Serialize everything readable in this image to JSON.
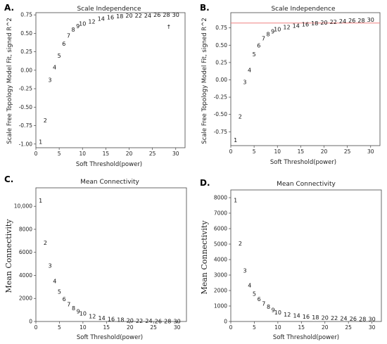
{
  "figure": {
    "panels": [
      {
        "letter": "A.",
        "chart_data": {
          "type": "scatter",
          "title": "Scale Independence",
          "xlabel": "Soft Threshold(power)",
          "ylabel": "Scale Free Topology Model Fit, signed R^2",
          "xlim": [
            0,
            32
          ],
          "ylim": [
            -1.05,
            0.78
          ],
          "xticks": [
            "0",
            "5",
            "10",
            "15",
            "20",
            "25",
            "30"
          ],
          "yticks": [
            "-1.00",
            "-0.75",
            "-0.50",
            "-0.25",
            "0.00",
            "0.25",
            "0.50",
            "0.75"
          ],
          "xtick_values": [
            0,
            5,
            10,
            15,
            20,
            25,
            30
          ],
          "ytick_values": [
            -1.0,
            -0.75,
            -0.5,
            -0.25,
            0.0,
            0.25,
            0.5,
            0.75
          ],
          "x": [
            1,
            2,
            3,
            4,
            5,
            6,
            7,
            8,
            9,
            10,
            12,
            14,
            16,
            18,
            20,
            22,
            24,
            26,
            28,
            30
          ],
          "y": [
            -0.97,
            -0.68,
            -0.13,
            0.04,
            0.2,
            0.36,
            0.47,
            0.55,
            0.6,
            0.63,
            0.66,
            0.7,
            0.72,
            0.73,
            0.74,
            0.74,
            0.74,
            0.75,
            0.75,
            0.75
          ],
          "labels": [
            "1",
            "2",
            "3",
            "4",
            "5",
            "6",
            "7",
            "8",
            "9",
            "10",
            "12",
            "14",
            "16",
            "18",
            "20",
            "22",
            "24",
            "26",
            "28",
            "30"
          ],
          "annotation": {
            "text": "↑",
            "x": 28.5,
            "y": 0.6,
            "color": "#e06666"
          },
          "grid": false
        }
      },
      {
        "letter": "B.",
        "chart_data": {
          "type": "scatter",
          "title": "Scale Independence",
          "xlabel": "Soft Threshold(power)",
          "ylabel": "Scale Free Topology Model Fit, signed R^2",
          "xlim": [
            0,
            32
          ],
          "ylim": [
            -0.95,
            0.97
          ],
          "xticks": [
            "0",
            "5",
            "10",
            "15",
            "20",
            "25",
            "30"
          ],
          "yticks": [
            "-0.75",
            "-0.50",
            "-0.25",
            "0.00",
            "0.25",
            "0.50",
            "0.75"
          ],
          "xtick_values": [
            0,
            5,
            10,
            15,
            20,
            25,
            30
          ],
          "ytick_values": [
            -0.75,
            -0.5,
            -0.25,
            0.0,
            0.25,
            0.5,
            0.75
          ],
          "x": [
            1,
            2,
            3,
            4,
            5,
            6,
            7,
            8,
            9,
            10,
            12,
            14,
            16,
            18,
            20,
            22,
            24,
            26,
            28,
            30
          ],
          "y": [
            -0.87,
            -0.53,
            -0.03,
            0.14,
            0.37,
            0.5,
            0.6,
            0.66,
            0.7,
            0.73,
            0.76,
            0.78,
            0.8,
            0.82,
            0.83,
            0.84,
            0.85,
            0.86,
            0.86,
            0.87
          ],
          "labels": [
            "1",
            "2",
            "3",
            "4",
            "5",
            "6",
            "7",
            "8",
            "9",
            "10",
            "12",
            "14",
            "16",
            "18",
            "20",
            "22",
            "24",
            "26",
            "28",
            "30"
          ],
          "hline": {
            "y": 0.82,
            "color": "#f08080"
          },
          "grid": false
        }
      },
      {
        "letter": "C.",
        "chart_data": {
          "type": "scatter",
          "title": "Mean Connectivity",
          "xlabel": "Soft Threshold(power)",
          "ylabel": "Mean Connectivity",
          "ylabel_font": "serif",
          "xlim": [
            0,
            32
          ],
          "ylim": [
            0,
            11600
          ],
          "xticks": [
            "0",
            "5",
            "10",
            "15",
            "20",
            "25",
            "30"
          ],
          "yticks": [
            "0",
            "2000",
            "4000",
            "6000",
            "8000",
            "10,000"
          ],
          "xtick_values": [
            0,
            5,
            10,
            15,
            20,
            25,
            30
          ],
          "ytick_values": [
            0,
            2000,
            4000,
            6000,
            8000,
            10000
          ],
          "x": [
            1,
            2,
            3,
            4,
            5,
            6,
            7,
            8,
            9,
            10,
            12,
            14,
            16,
            18,
            20,
            22,
            24,
            26,
            28,
            30
          ],
          "y": [
            10500,
            6850,
            4850,
            3500,
            2600,
            1950,
            1500,
            1150,
            900,
            700,
            450,
            300,
            200,
            150,
            100,
            70,
            50,
            40,
            30,
            20
          ],
          "labels": [
            "1",
            "2",
            "3",
            "4",
            "5",
            "6",
            "7",
            "8",
            "9",
            "10",
            "12",
            "14",
            "16",
            "18",
            "20",
            "22",
            "24",
            "26",
            "28",
            "30"
          ],
          "grid": false
        }
      },
      {
        "letter": "D.",
        "chart_data": {
          "type": "scatter",
          "title": "Mean Connectivity",
          "xlabel": "Soft Threshold(power)",
          "ylabel": "Mean Connectivity",
          "ylabel_font": "serif",
          "xlim": [
            0,
            32
          ],
          "ylim": [
            0,
            8500
          ],
          "xticks": [
            "0",
            "5",
            "10",
            "15",
            "20",
            "25",
            "30"
          ],
          "yticks": [
            "0",
            "1000",
            "2000",
            "3000",
            "4000",
            "5000",
            "6000",
            "7000",
            "8000"
          ],
          "xtick_values": [
            0,
            5,
            10,
            15,
            20,
            25,
            30
          ],
          "ytick_values": [
            0,
            1000,
            2000,
            3000,
            4000,
            5000,
            6000,
            7000,
            8000
          ],
          "x": [
            1,
            2,
            3,
            4,
            5,
            6,
            7,
            8,
            9,
            10,
            12,
            14,
            16,
            18,
            20,
            22,
            24,
            26,
            28,
            30
          ],
          "y": [
            7850,
            5050,
            3300,
            2350,
            1800,
            1450,
            1150,
            950,
            750,
            600,
            450,
            380,
            320,
            280,
            250,
            220,
            200,
            180,
            160,
            150
          ],
          "labels": [
            "1",
            "2",
            "3",
            "4",
            "5",
            "6",
            "7",
            "8",
            "9",
            "10",
            "12",
            "14",
            "16",
            "18",
            "20",
            "22",
            "24",
            "26",
            "28",
            "30"
          ],
          "grid": false
        }
      }
    ]
  }
}
